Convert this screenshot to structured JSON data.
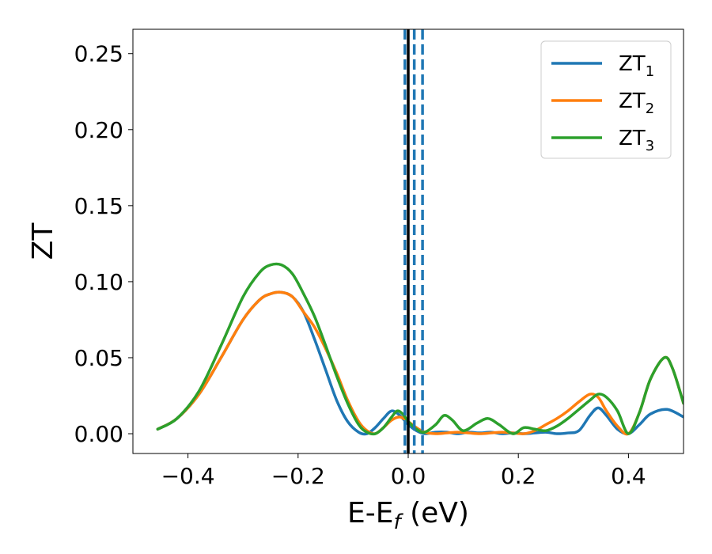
{
  "chart_data": {
    "type": "line",
    "xlabel": "E-E",
    "xlabel_subscript": "f",
    "xlabel_unit": " (eV)",
    "ylabel": "ZT",
    "xlim": [
      -0.5,
      0.5
    ],
    "ylim": [
      -0.013,
      0.266
    ],
    "xticks": [
      -0.4,
      -0.2,
      0.0,
      0.2,
      0.4
    ],
    "xtick_labels": [
      "−0.4",
      "−0.2",
      "0.0",
      "0.2",
      "0.4"
    ],
    "yticks": [
      0.0,
      0.05,
      0.1,
      0.15,
      0.2,
      0.25
    ],
    "ytick_labels": [
      "0.00",
      "0.05",
      "0.10",
      "0.15",
      "0.20",
      "0.25"
    ],
    "legend_position": "top-right",
    "grid": false,
    "series": [
      {
        "name": "ZT",
        "subscript": "1",
        "color": "#1f77b4",
        "x": [
          -0.455,
          -0.42,
          -0.38,
          -0.34,
          -0.3,
          -0.27,
          -0.25,
          -0.23,
          -0.21,
          -0.19,
          -0.17,
          -0.15,
          -0.13,
          -0.11,
          -0.09,
          -0.075,
          -0.06,
          -0.045,
          -0.03,
          -0.015,
          0.0,
          0.015,
          0.03,
          0.05,
          0.07,
          0.09,
          0.11,
          0.13,
          0.15,
          0.17,
          0.19,
          0.21,
          0.23,
          0.25,
          0.27,
          0.29,
          0.31,
          0.33,
          0.345,
          0.36,
          0.38,
          0.4,
          0.42,
          0.44,
          0.47,
          0.5
        ],
        "y": [
          0.003,
          0.01,
          0.026,
          0.05,
          0.075,
          0.088,
          0.092,
          0.093,
          0.09,
          0.08,
          0.062,
          0.042,
          0.022,
          0.008,
          0.001,
          0.0,
          0.004,
          0.01,
          0.015,
          0.012,
          0.006,
          0.002,
          0.0,
          0.001,
          0.001,
          0.0,
          0.001,
          0.0005,
          0.001,
          0.0,
          0.0005,
          0.0,
          0.0005,
          0.001,
          0.0,
          0.0005,
          0.002,
          0.012,
          0.017,
          0.012,
          0.003,
          0.0,
          0.006,
          0.013,
          0.016,
          0.011
        ]
      },
      {
        "name": "ZT",
        "subscript": "2",
        "color": "#ff7f0e",
        "x": [
          -0.455,
          -0.42,
          -0.38,
          -0.34,
          -0.3,
          -0.27,
          -0.25,
          -0.23,
          -0.21,
          -0.19,
          -0.17,
          -0.15,
          -0.13,
          -0.11,
          -0.09,
          -0.075,
          -0.06,
          -0.045,
          -0.03,
          -0.015,
          0.0,
          0.015,
          0.03,
          0.05,
          0.07,
          0.09,
          0.11,
          0.13,
          0.15,
          0.17,
          0.19,
          0.21,
          0.23,
          0.25,
          0.27,
          0.29,
          0.31,
          0.33,
          0.345,
          0.36,
          0.38,
          0.4,
          0.42,
          0.44,
          0.465,
          0.48,
          0.5
        ],
        "y": [
          0.003,
          0.01,
          0.026,
          0.05,
          0.075,
          0.088,
          0.092,
          0.093,
          0.09,
          0.08,
          0.07,
          0.056,
          0.04,
          0.022,
          0.008,
          0.002,
          0.0,
          0.004,
          0.009,
          0.011,
          0.008,
          0.004,
          0.001,
          0.0,
          0.0005,
          0.001,
          0.0005,
          0.0,
          0.0005,
          0.001,
          0.0005,
          0.0,
          0.002,
          0.006,
          0.01,
          0.015,
          0.021,
          0.026,
          0.024,
          0.015,
          0.005,
          0.0,
          0.014,
          0.036,
          0.05,
          0.043,
          0.02
        ]
      },
      {
        "name": "ZT",
        "subscript": "3",
        "color": "#2ca02c",
        "x": [
          -0.455,
          -0.42,
          -0.38,
          -0.34,
          -0.3,
          -0.27,
          -0.25,
          -0.23,
          -0.21,
          -0.19,
          -0.17,
          -0.15,
          -0.13,
          -0.11,
          -0.09,
          -0.075,
          -0.06,
          -0.045,
          -0.03,
          -0.02,
          -0.01,
          0.0,
          0.015,
          0.03,
          0.05,
          0.065,
          0.08,
          0.1,
          0.125,
          0.145,
          0.165,
          0.19,
          0.21,
          0.23,
          0.25,
          0.27,
          0.29,
          0.31,
          0.33,
          0.345,
          0.36,
          0.38,
          0.4,
          0.42,
          0.44,
          0.465,
          0.48,
          0.5
        ],
        "y": [
          0.003,
          0.01,
          0.028,
          0.058,
          0.09,
          0.106,
          0.111,
          0.111,
          0.105,
          0.092,
          0.077,
          0.058,
          0.038,
          0.02,
          0.006,
          0.001,
          0.0,
          0.004,
          0.011,
          0.015,
          0.013,
          0.008,
          0.003,
          0.001,
          0.006,
          0.012,
          0.009,
          0.002,
          0.007,
          0.01,
          0.006,
          0.0,
          0.004,
          0.003,
          0.002,
          0.005,
          0.01,
          0.016,
          0.022,
          0.026,
          0.024,
          0.015,
          0.0,
          0.014,
          0.036,
          0.05,
          0.043,
          0.02
        ]
      }
    ],
    "vertical_lines": [
      {
        "x": 0.0,
        "style": "solid",
        "color": "#000000"
      },
      {
        "x": -0.006,
        "style": "dashed",
        "color": "#1f77b4"
      },
      {
        "x": 0.011,
        "style": "dashed",
        "color": "#1f77b4"
      },
      {
        "x": 0.026,
        "style": "dashed",
        "color": "#1f77b4"
      }
    ]
  }
}
